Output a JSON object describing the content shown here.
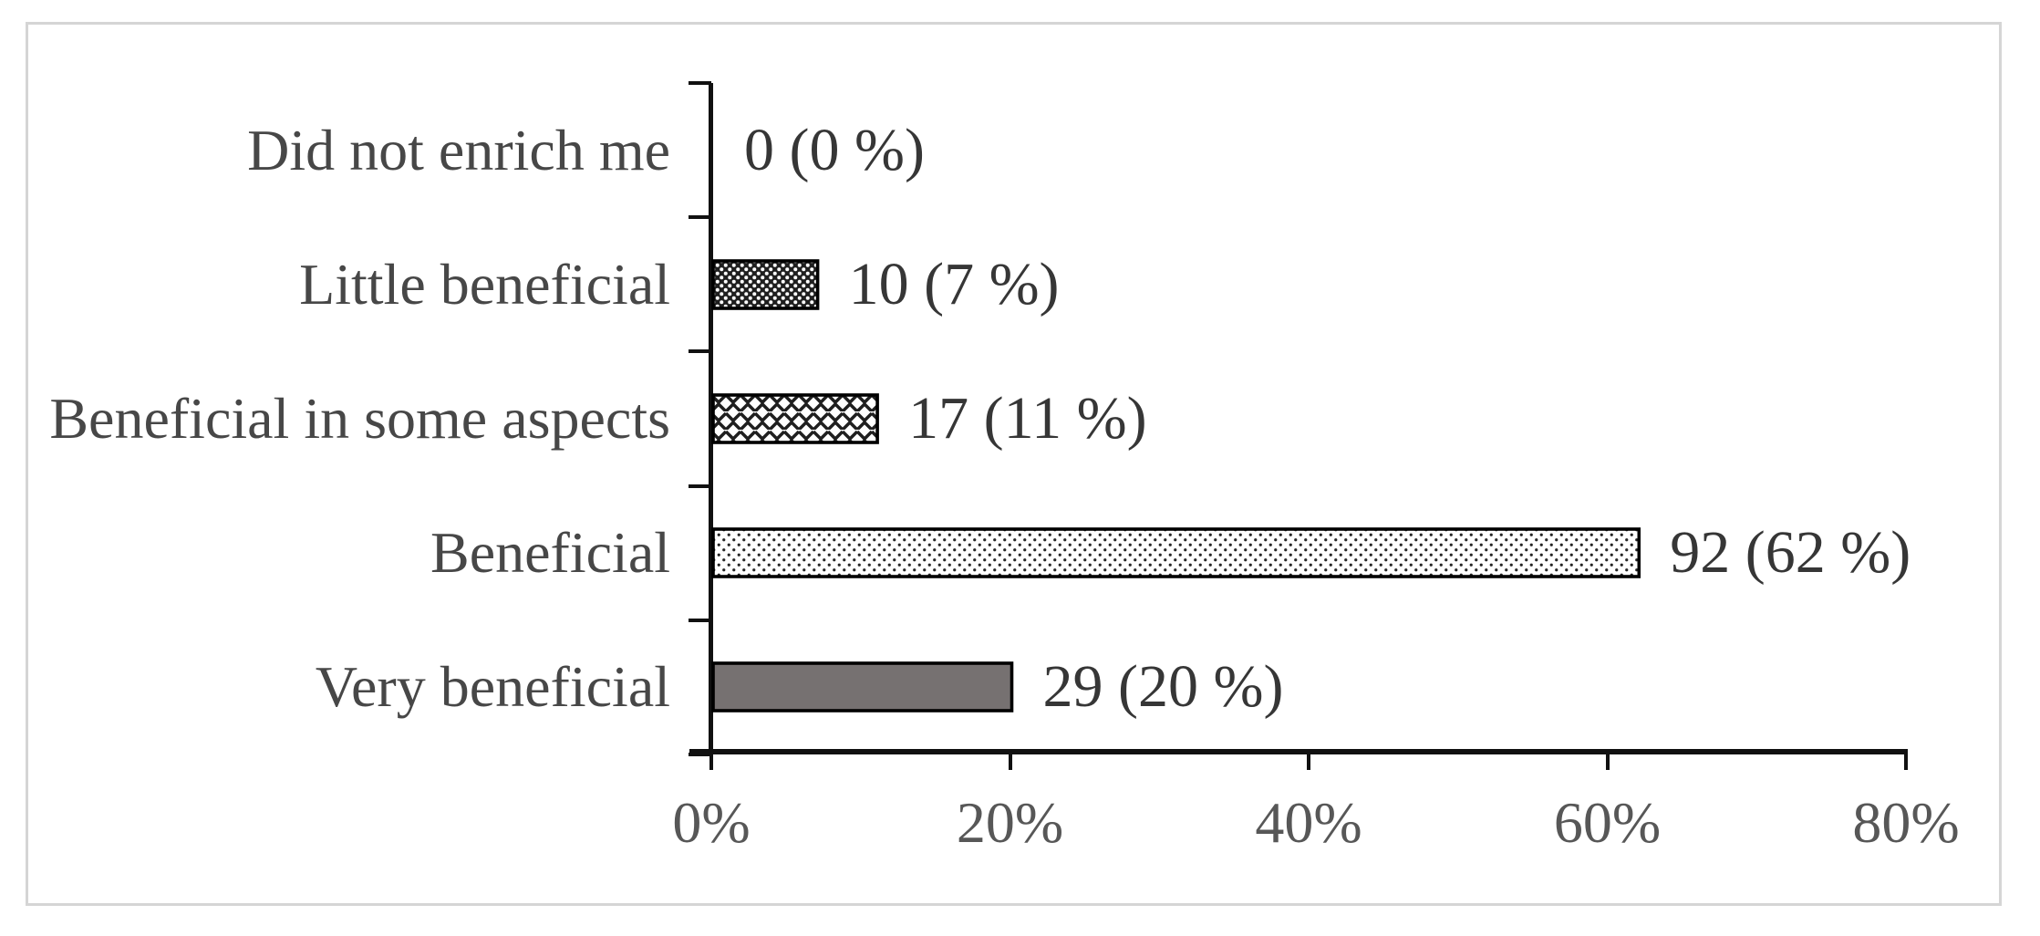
{
  "figure": {
    "background": "#ffffff",
    "frame_border_color": "#d5d5d5"
  },
  "chart_data": {
    "type": "bar",
    "orientation": "horizontal",
    "categories": [
      "Did not enrich me",
      "Little beneficial",
      "Beneficial in some aspects",
      "Beneficial",
      "Very beneficial"
    ],
    "counts": [
      0,
      10,
      17,
      92,
      29
    ],
    "values_pct": [
      0,
      7,
      11,
      62,
      20
    ],
    "data_labels": [
      "0 (0 %)",
      "10 (7 %)",
      "17 (11 %)",
      "92 (62 %)",
      "29 (20 %)"
    ],
    "x_ticks": [
      0,
      20,
      40,
      60,
      80
    ],
    "x_tick_labels": [
      "0%",
      "20%",
      "40%",
      "60%",
      "80%"
    ],
    "xlim": [
      0,
      80
    ],
    "grid": false,
    "legend": false,
    "bar_styles": [
      "none",
      "dark-trellis",
      "weave",
      "light-dots",
      "solid"
    ],
    "solid_bar_color": "#767171",
    "pattern_ink_color": "#1f1f1f",
    "bar_outline_color": "#000000",
    "axis_color": "#111111",
    "category_label_color": "#474747",
    "value_label_color": "#363636",
    "tick_label_color": "#575757"
  }
}
